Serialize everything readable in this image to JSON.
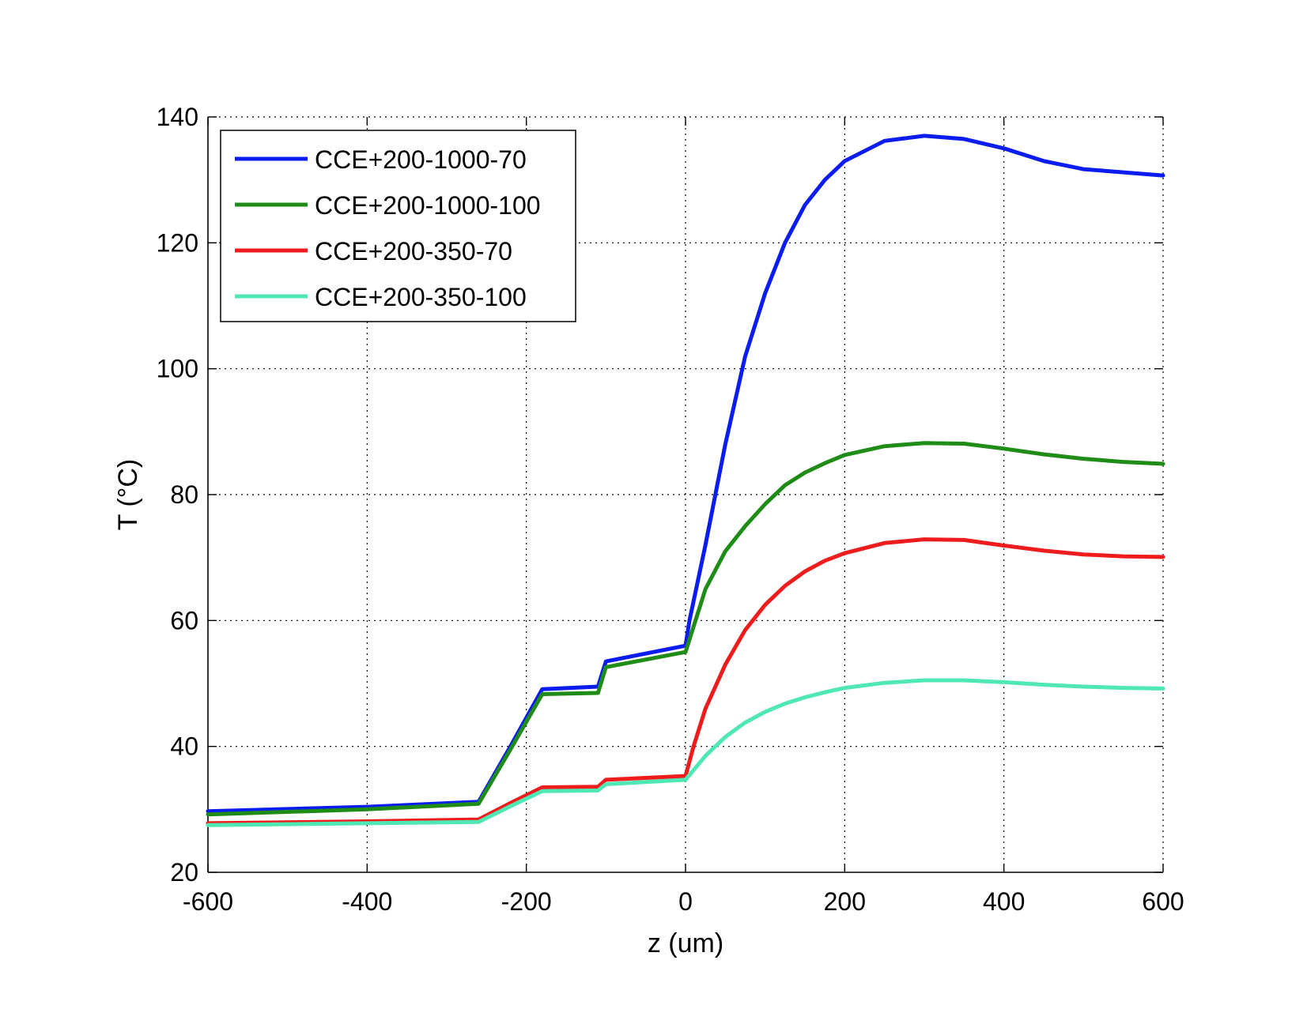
{
  "chart_data": {
    "type": "line",
    "xlabel": "z (um)",
    "ylabel": "T (°C)",
    "xlim": [
      -600,
      600
    ],
    "ylim": [
      20,
      140
    ],
    "xticks": [
      -600,
      -400,
      -200,
      0,
      200,
      400,
      600
    ],
    "yticks": [
      20,
      40,
      60,
      80,
      100,
      120,
      140
    ],
    "xtick_labels": [
      "-600",
      "-400",
      "-200",
      "0",
      "200",
      "400",
      "600"
    ],
    "ytick_labels": [
      "20",
      "40",
      "60",
      "80",
      "100",
      "120",
      "140"
    ],
    "grid": true,
    "legend_position": "top-left",
    "series": [
      {
        "name": "CCE+200-1000-70",
        "color": "#0a1cf0",
        "x": [
          -600,
          -400,
          -260,
          -220,
          -180,
          -110,
          -100,
          0,
          5,
          25,
          50,
          75,
          100,
          125,
          150,
          175,
          200,
          250,
          300,
          350,
          400,
          450,
          500,
          550,
          600
        ],
        "y": [
          29.7,
          30.4,
          31.2,
          40.0,
          49.1,
          49.5,
          53.5,
          56.0,
          60.0,
          72.0,
          88.0,
          102.0,
          112.0,
          120.0,
          126.0,
          130.0,
          133.0,
          136.2,
          137.0,
          136.5,
          135.0,
          133.0,
          131.7,
          131.2,
          130.7
        ]
      },
      {
        "name": "CCE+200-1000-100",
        "color": "#1e8c17",
        "x": [
          -600,
          -400,
          -260,
          -220,
          -180,
          -110,
          -100,
          0,
          25,
          50,
          75,
          100,
          125,
          150,
          175,
          200,
          250,
          300,
          350,
          400,
          450,
          500,
          550,
          600
        ],
        "y": [
          29.2,
          30.0,
          30.9,
          39.5,
          48.3,
          48.5,
          52.6,
          55.0,
          65.0,
          71.0,
          75.0,
          78.5,
          81.5,
          83.5,
          85.0,
          86.3,
          87.7,
          88.2,
          88.1,
          87.3,
          86.4,
          85.7,
          85.2,
          84.9
        ]
      },
      {
        "name": "CCE+200-350-70",
        "color": "#ee1c1c",
        "x": [
          -600,
          -400,
          -260,
          -220,
          -180,
          -110,
          -100,
          0,
          10,
          25,
          50,
          75,
          100,
          125,
          150,
          175,
          200,
          250,
          300,
          350,
          400,
          450,
          500,
          550,
          600
        ],
        "y": [
          27.8,
          28.1,
          28.4,
          31.0,
          33.5,
          33.6,
          34.7,
          35.3,
          40.0,
          46.0,
          53.0,
          58.5,
          62.5,
          65.5,
          67.8,
          69.5,
          70.7,
          72.3,
          72.9,
          72.8,
          71.9,
          71.1,
          70.5,
          70.2,
          70.1
        ]
      },
      {
        "name": "CCE+200-350-100",
        "color": "#4fe8b4",
        "x": [
          -600,
          -400,
          -260,
          -220,
          -180,
          -110,
          -100,
          0,
          25,
          50,
          75,
          100,
          125,
          150,
          175,
          200,
          250,
          300,
          350,
          400,
          450,
          500,
          550,
          600
        ],
        "y": [
          27.5,
          27.8,
          28.0,
          30.5,
          32.9,
          33.0,
          34.0,
          34.7,
          38.5,
          41.5,
          43.8,
          45.5,
          46.8,
          47.8,
          48.6,
          49.3,
          50.1,
          50.5,
          50.5,
          50.2,
          49.8,
          49.5,
          49.3,
          49.2
        ]
      }
    ]
  }
}
